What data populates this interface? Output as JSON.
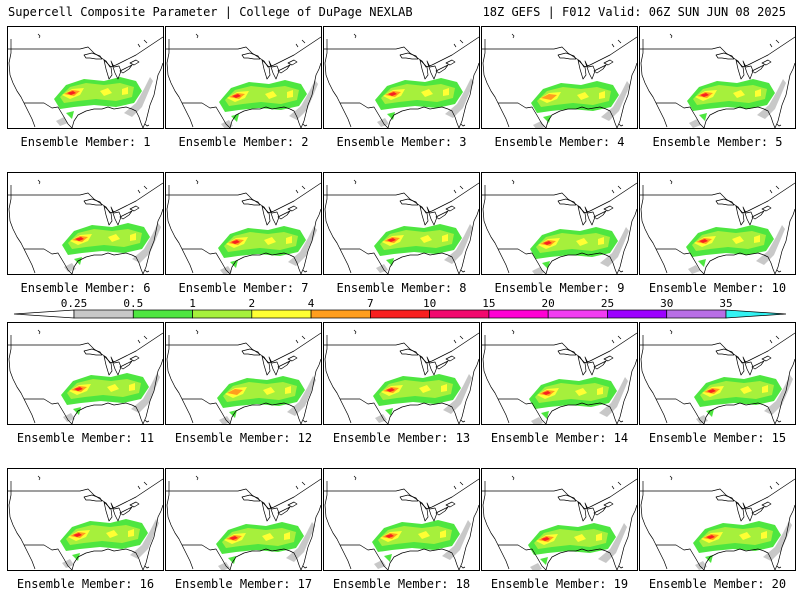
{
  "header": {
    "left_title": "Supercell Composite Parameter | College of DuPage NEXLAB",
    "right_title": "18Z GEFS | F012 Valid: 06Z SUN JUN 08 2025"
  },
  "members": [
    {
      "label": "Ensemble Member: 1",
      "max_level": 6
    },
    {
      "label": "Ensemble Member: 2",
      "max_level": 6
    },
    {
      "label": "Ensemble Member: 3",
      "max_level": 6
    },
    {
      "label": "Ensemble Member: 4",
      "max_level": 4
    },
    {
      "label": "Ensemble Member: 5",
      "max_level": 5
    },
    {
      "label": "Ensemble Member: 6",
      "max_level": 6
    },
    {
      "label": "Ensemble Member: 7",
      "max_level": 6
    },
    {
      "label": "Ensemble Member: 8",
      "max_level": 6
    },
    {
      "label": "Ensemble Member: 9",
      "max_level": 6
    },
    {
      "label": "Ensemble Member: 10",
      "max_level": 5
    },
    {
      "label": "Ensemble Member: 11",
      "max_level": 6
    },
    {
      "label": "Ensemble Member: 12",
      "max_level": 4
    },
    {
      "label": "Ensemble Member: 13",
      "max_level": 5
    },
    {
      "label": "Ensemble Member: 14",
      "max_level": 6
    },
    {
      "label": "Ensemble Member: 15",
      "max_level": 6
    },
    {
      "label": "Ensemble Member: 16",
      "max_level": 5
    },
    {
      "label": "Ensemble Member: 17",
      "max_level": 6
    },
    {
      "label": "Ensemble Member: 18",
      "max_level": 5
    },
    {
      "label": "Ensemble Member: 19",
      "max_level": 5
    },
    {
      "label": "Ensemble Member: 20",
      "max_level": 6
    }
  ],
  "colorbar": {
    "thresholds": [
      "0.25",
      "0.5",
      "1",
      "2",
      "4",
      "7",
      "10",
      "15",
      "20",
      "25",
      "30",
      "35"
    ],
    "colors": [
      "#c8c8c8",
      "#4ee640",
      "#a6f03c",
      "#ffff33",
      "#ff9e1e",
      "#f82020",
      "#f2086e",
      "#ff00d4",
      "#f23cf2",
      "#9c00ff",
      "#b86ee6",
      "#33f2f2"
    ],
    "under_color": "#ffffff",
    "over_color": "#33f2f2"
  }
}
